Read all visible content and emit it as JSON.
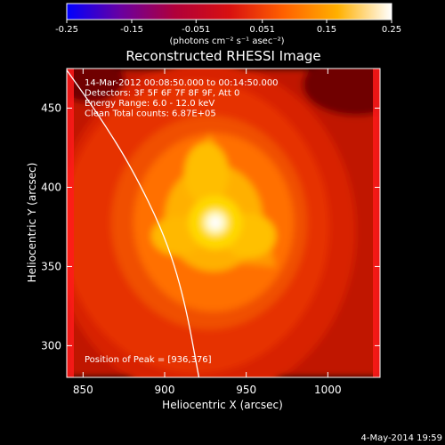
{
  "chart_data": {
    "type": "heatmap",
    "title": "Reconstructed RHESSI Image",
    "colorbar": {
      "min": -0.25,
      "max": 0.25,
      "ticks": [
        "-0.25",
        "-0.15",
        "-0.051",
        "0.051",
        "0.15",
        "0.25"
      ],
      "tick_values": [
        -0.25,
        -0.15,
        -0.051,
        0.051,
        0.15,
        0.25
      ],
      "unit_label": "(photons cm⁻² s⁻¹ asec⁻²)"
    },
    "xlabel": "Heliocentric X (arcsec)",
    "ylabel": "Heliocentric Y (arcsec)",
    "xlim": [
      840,
      1032
    ],
    "ylim": [
      280,
      475
    ],
    "xticks": [
      850,
      900,
      950,
      1000
    ],
    "yticks": [
      300,
      350,
      400,
      450
    ],
    "annotations": [
      "14-Mar-2012 00:08:50.000 to 00:14:50.000",
      "Detectors: 3F 5F 6F 7F 8F 9F, Att 0",
      "Energy Range: 6.0 - 12.0 keV",
      "Clean     Total counts: 6.87E+05"
    ],
    "peak_label": "Position of Peak = [936,376]",
    "peak": [
      936,
      376
    ],
    "limb_curve": [
      [
        840,
        474
      ],
      [
        860,
        445
      ],
      [
        880,
        412
      ],
      [
        900,
        370
      ],
      [
        912,
        330
      ],
      [
        921,
        280
      ]
    ],
    "colors": {
      "background": "#000000",
      "text": "#ffffff",
      "limb": "#ffffff",
      "edge_marker": "#ff1a1a"
    },
    "colormap_stops": [
      "#0000ff",
      "#6a00a0",
      "#b0003a",
      "#d81010",
      "#ff6000",
      "#ffb000",
      "#ffffff"
    ]
  },
  "footer": {
    "date": "4-May-2014 19:59"
  }
}
